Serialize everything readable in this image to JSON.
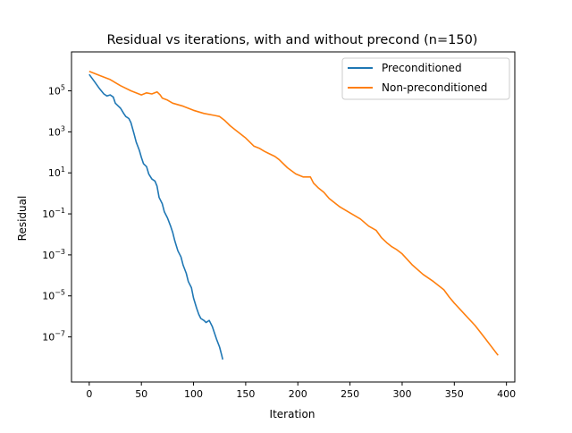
{
  "chart_data": {
    "type": "line",
    "title": "Residual vs iterations, with and without precond (n=150)",
    "xlabel": "Iteration",
    "ylabel": "Residual",
    "xlim": [
      -17,
      408
    ],
    "ylim_log10": [
      -9.2,
      6.9
    ],
    "yscale": "log",
    "xticks": [
      0,
      50,
      100,
      150,
      200,
      250,
      300,
      350,
      400
    ],
    "xtick_labels": [
      "0",
      "50",
      "100",
      "150",
      "200",
      "250",
      "300",
      "350",
      "400"
    ],
    "yticks_log10": [
      5,
      3,
      1,
      -1,
      -3,
      -5,
      -7
    ],
    "ytick_labels": [
      {
        "base": "10",
        "exp": "5"
      },
      {
        "base": "10",
        "exp": "3"
      },
      {
        "base": "10",
        "exp": "1"
      },
      {
        "base": "10",
        "exp": "−1"
      },
      {
        "base": "10",
        "exp": "−3"
      },
      {
        "base": "10",
        "exp": "−5"
      },
      {
        "base": "10",
        "exp": "−7"
      }
    ],
    "grid": false,
    "legend_position": "top-right",
    "series": [
      {
        "name": "Preconditioned",
        "color": "#1f77b4",
        "x": [
          0,
          5,
          10,
          14,
          17,
          20,
          23,
          25,
          28,
          30,
          33,
          35,
          38,
          40,
          43,
          45,
          48,
          50,
          52,
          55,
          57,
          60,
          63,
          65,
          67,
          70,
          72,
          75,
          78,
          80,
          82,
          85,
          88,
          90,
          93,
          95,
          98,
          100,
          103,
          105,
          107,
          110,
          112,
          115,
          118,
          120,
          122,
          125,
          127,
          128
        ],
        "y_log10": [
          5.8,
          5.45,
          5.1,
          4.85,
          4.75,
          4.8,
          4.7,
          4.4,
          4.25,
          4.15,
          3.9,
          3.75,
          3.65,
          3.45,
          2.9,
          2.5,
          2.1,
          1.75,
          1.45,
          1.3,
          0.95,
          0.7,
          0.6,
          0.35,
          -0.2,
          -0.5,
          -0.9,
          -1.2,
          -1.6,
          -1.9,
          -2.3,
          -2.8,
          -3.1,
          -3.5,
          -3.9,
          -4.3,
          -4.6,
          -5.1,
          -5.6,
          -5.9,
          -6.1,
          -6.2,
          -6.3,
          -6.2,
          -6.5,
          -6.8,
          -7.1,
          -7.5,
          -7.9,
          -8.1
        ]
      },
      {
        "name": "Non-preconditioned",
        "color": "#ff7f0e",
        "x": [
          0,
          10,
          20,
          30,
          40,
          50,
          55,
          60,
          65,
          68,
          70,
          75,
          80,
          90,
          100,
          110,
          120,
          125,
          130,
          135,
          140,
          150,
          158,
          163,
          168,
          172,
          178,
          182,
          190,
          198,
          205,
          212,
          215,
          220,
          225,
          230,
          240,
          250,
          260,
          268,
          275,
          280,
          285,
          290,
          295,
          300,
          310,
          320,
          330,
          340,
          345,
          350,
          360,
          370,
          380,
          392
        ],
        "y_log10": [
          5.95,
          5.75,
          5.55,
          5.25,
          5.0,
          4.8,
          4.9,
          4.85,
          4.95,
          4.8,
          4.65,
          4.55,
          4.4,
          4.25,
          4.05,
          3.9,
          3.8,
          3.75,
          3.55,
          3.3,
          3.1,
          2.7,
          2.3,
          2.2,
          2.05,
          1.95,
          1.8,
          1.65,
          1.25,
          0.95,
          0.8,
          0.8,
          0.5,
          0.25,
          0.05,
          -0.25,
          -0.65,
          -0.95,
          -1.25,
          -1.6,
          -1.8,
          -2.15,
          -2.4,
          -2.6,
          -2.75,
          -2.95,
          -3.5,
          -3.95,
          -4.3,
          -4.7,
          -5.05,
          -5.35,
          -5.9,
          -6.45,
          -7.1,
          -7.9
        ]
      }
    ]
  }
}
